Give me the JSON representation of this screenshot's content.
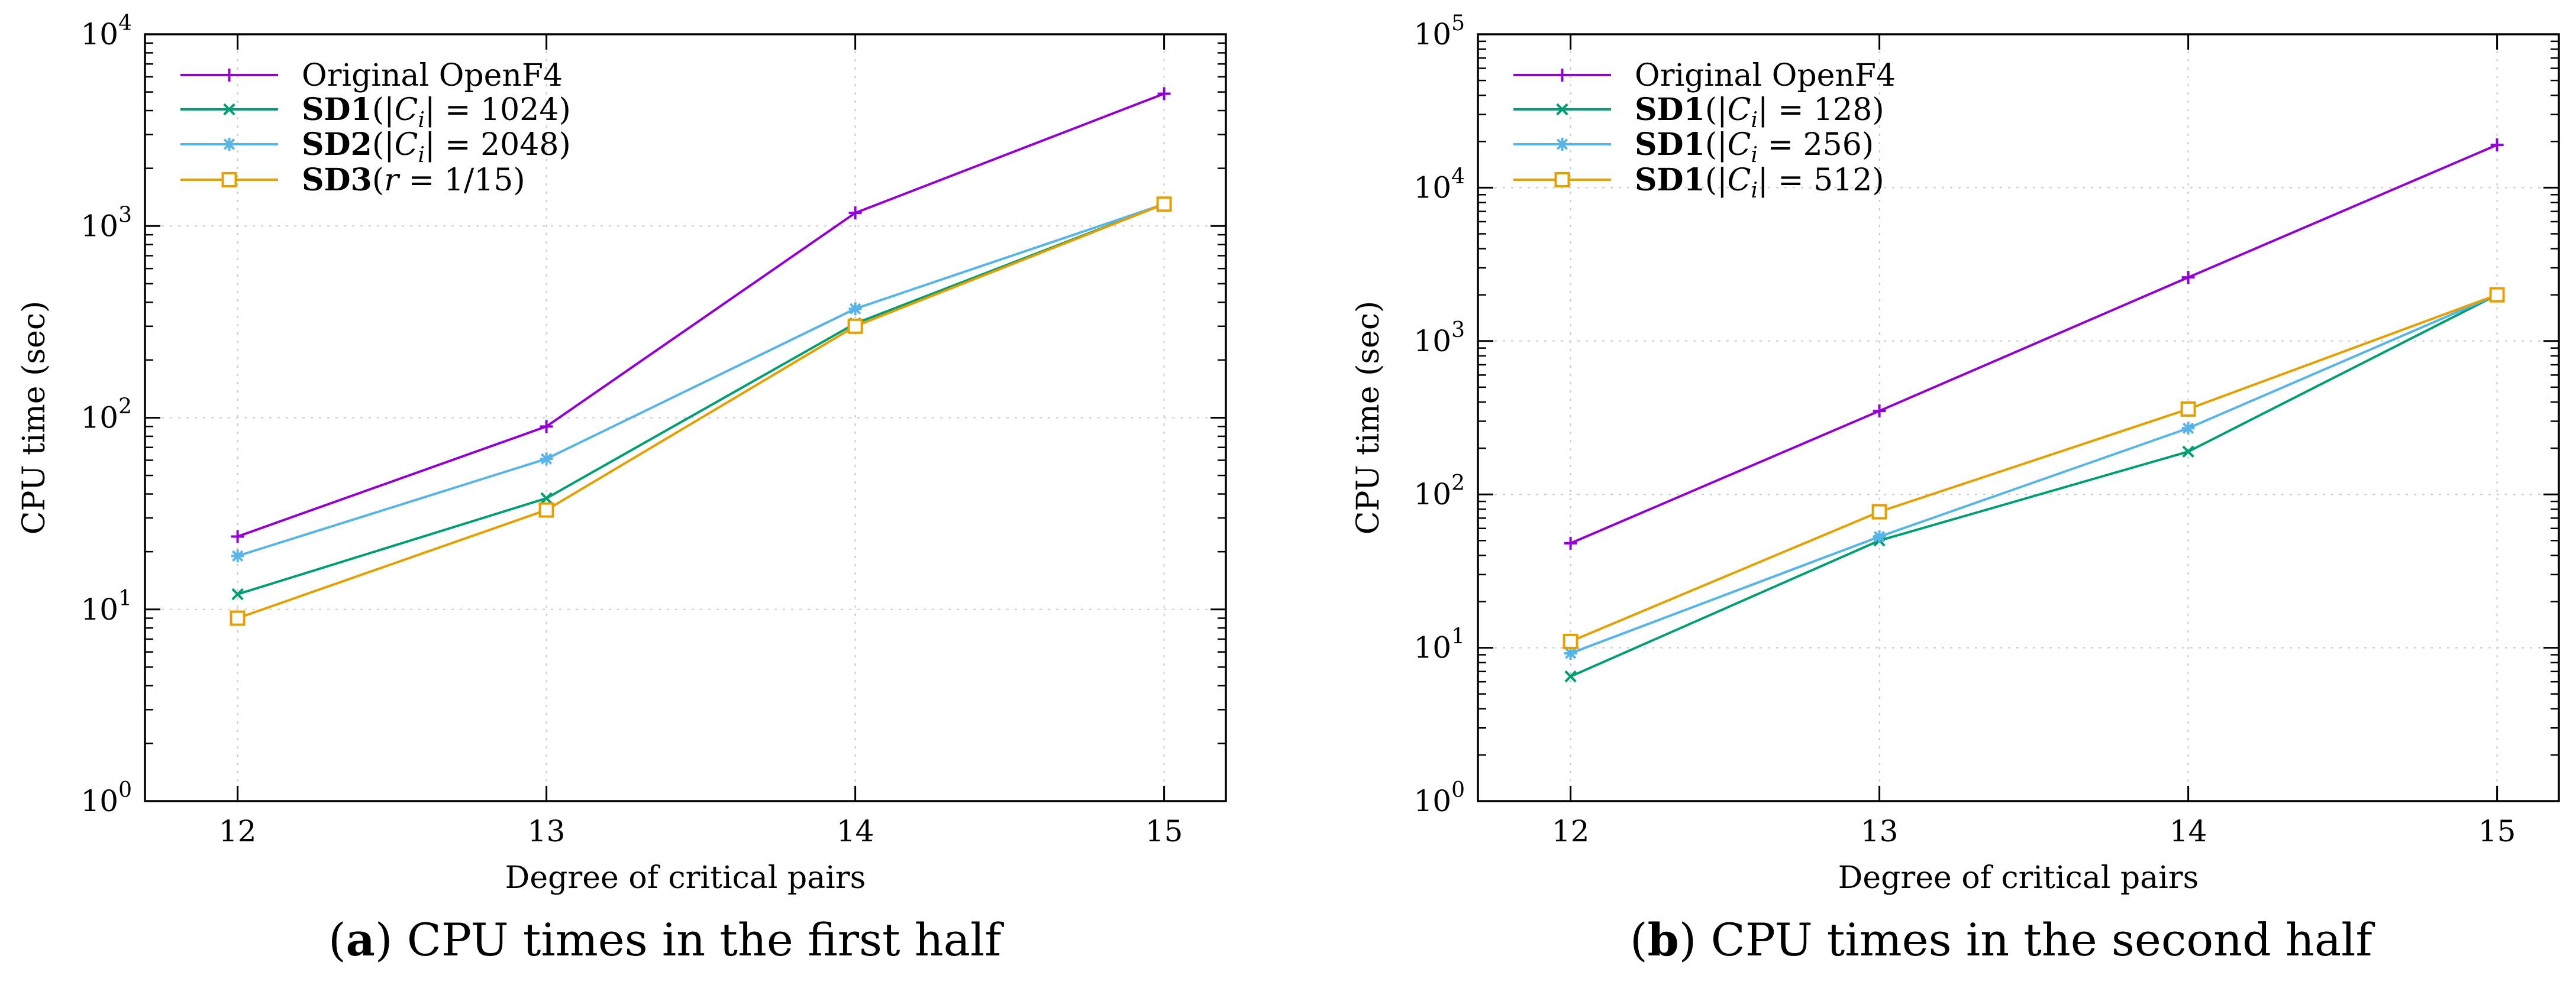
{
  "chart_data": [
    {
      "type": "line",
      "yscale": "log",
      "xlabel": "Degree of critical pairs",
      "ylabel": "CPU time (sec)",
      "x": [
        12,
        13,
        14,
        15
      ],
      "ylim": [
        1,
        10000
      ],
      "y_ticks": [
        {
          "base": "10",
          "exp": "0"
        },
        {
          "base": "10",
          "exp": "1"
        },
        {
          "base": "10",
          "exp": "2"
        },
        {
          "base": "10",
          "exp": "3"
        },
        {
          "base": "10",
          "exp": "4"
        }
      ],
      "grid": true,
      "legend_position": "top-left",
      "caption": {
        "letter": "a",
        "text": " CPU times in the first half"
      },
      "series": [
        {
          "name": "Original OpenF4",
          "legend": {
            "bold": "",
            "pre": "Original OpenF4",
            "var": "",
            "sub": "",
            "post": ""
          },
          "color": "#9400d3",
          "marker": "plus",
          "values": [
            24,
            90,
            1170,
            4900
          ]
        },
        {
          "name": "SD1(|C_i| = 1024)",
          "legend": {
            "bold": "SD1",
            "pre": "(|",
            "var": "C",
            "sub": "i",
            "post": "| = 1024)"
          },
          "color": "#009e73",
          "marker": "cross",
          "values": [
            12,
            38,
            310,
            1300
          ]
        },
        {
          "name": "SD2(|C_i| = 2048)",
          "legend": {
            "bold": "SD2",
            "pre": "(|",
            "var": "C",
            "sub": "i",
            "post": "| = 2048)"
          },
          "color": "#56b4e9",
          "marker": "star",
          "values": [
            19,
            61,
            370,
            1300
          ]
        },
        {
          "name": "SD3(r = 1/15)",
          "legend": {
            "bold": "SD3",
            "pre": "(",
            "var": "r",
            "sub": "",
            "post": " = 1/15)"
          },
          "color": "#e69f00",
          "marker": "square",
          "values": [
            9,
            33,
            300,
            1300
          ]
        }
      ]
    },
    {
      "type": "line",
      "yscale": "log",
      "xlabel": "Degree of critical pairs",
      "ylabel": "CPU time (sec)",
      "x": [
        12,
        13,
        14,
        15
      ],
      "ylim": [
        1,
        100000
      ],
      "y_ticks": [
        {
          "base": "10",
          "exp": "0"
        },
        {
          "base": "10",
          "exp": "1"
        },
        {
          "base": "10",
          "exp": "2"
        },
        {
          "base": "10",
          "exp": "3"
        },
        {
          "base": "10",
          "exp": "4"
        },
        {
          "base": "10",
          "exp": "5"
        }
      ],
      "grid": true,
      "legend_position": "top-left",
      "caption": {
        "letter": "b",
        "text": " CPU times in the second half"
      },
      "series": [
        {
          "name": "Original OpenF4",
          "legend": {
            "bold": "",
            "pre": "Original OpenF4",
            "var": "",
            "sub": "",
            "post": ""
          },
          "color": "#9400d3",
          "marker": "plus",
          "values": [
            48,
            350,
            2600,
            19000
          ]
        },
        {
          "name": "SD1(|C_i| = 128)",
          "legend": {
            "bold": "SD1",
            "pre": "(|",
            "var": "C",
            "sub": "i",
            "post": "| = 128)"
          },
          "color": "#009e73",
          "marker": "cross",
          "values": [
            6.5,
            50,
            190,
            2000
          ]
        },
        {
          "name": "SD1(|C_i = 256)",
          "legend": {
            "bold": "SD1",
            "pre": "(|",
            "var": "C",
            "sub": "i",
            "post": " = 256)"
          },
          "color": "#56b4e9",
          "marker": "star",
          "values": [
            9.2,
            53,
            270,
            2000
          ]
        },
        {
          "name": "SD1(|C_i| = 512)",
          "legend": {
            "bold": "SD1",
            "pre": "(|",
            "var": "C",
            "sub": "i",
            "post": "| = 512)"
          },
          "color": "#e69f00",
          "marker": "square",
          "values": [
            11,
            77,
            360,
            2000
          ]
        }
      ]
    }
  ]
}
